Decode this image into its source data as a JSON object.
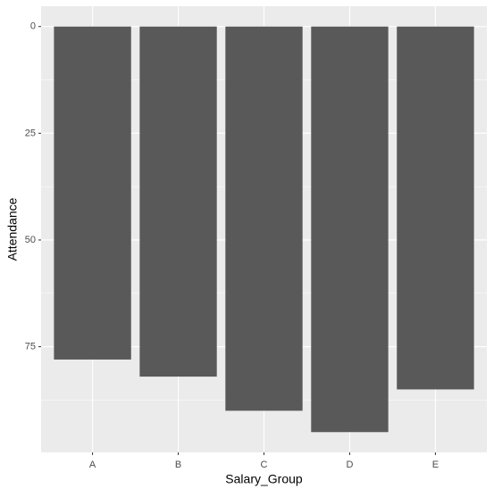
{
  "chart_data": {
    "type": "bar",
    "x_label": "Salary_Group",
    "y_label": "Attendance",
    "categories": [
      "A",
      "B",
      "C",
      "D",
      "E"
    ],
    "values": [
      78,
      82,
      90,
      95,
      85
    ],
    "color": "#595959",
    "ylim": [
      -4.75,
      99.75
    ],
    "y_reverse": true,
    "yticks": [
      0,
      25,
      50,
      75
    ],
    "yminor": [
      12.5,
      37.5,
      62.5,
      87.5
    ],
    "grid": true
  }
}
